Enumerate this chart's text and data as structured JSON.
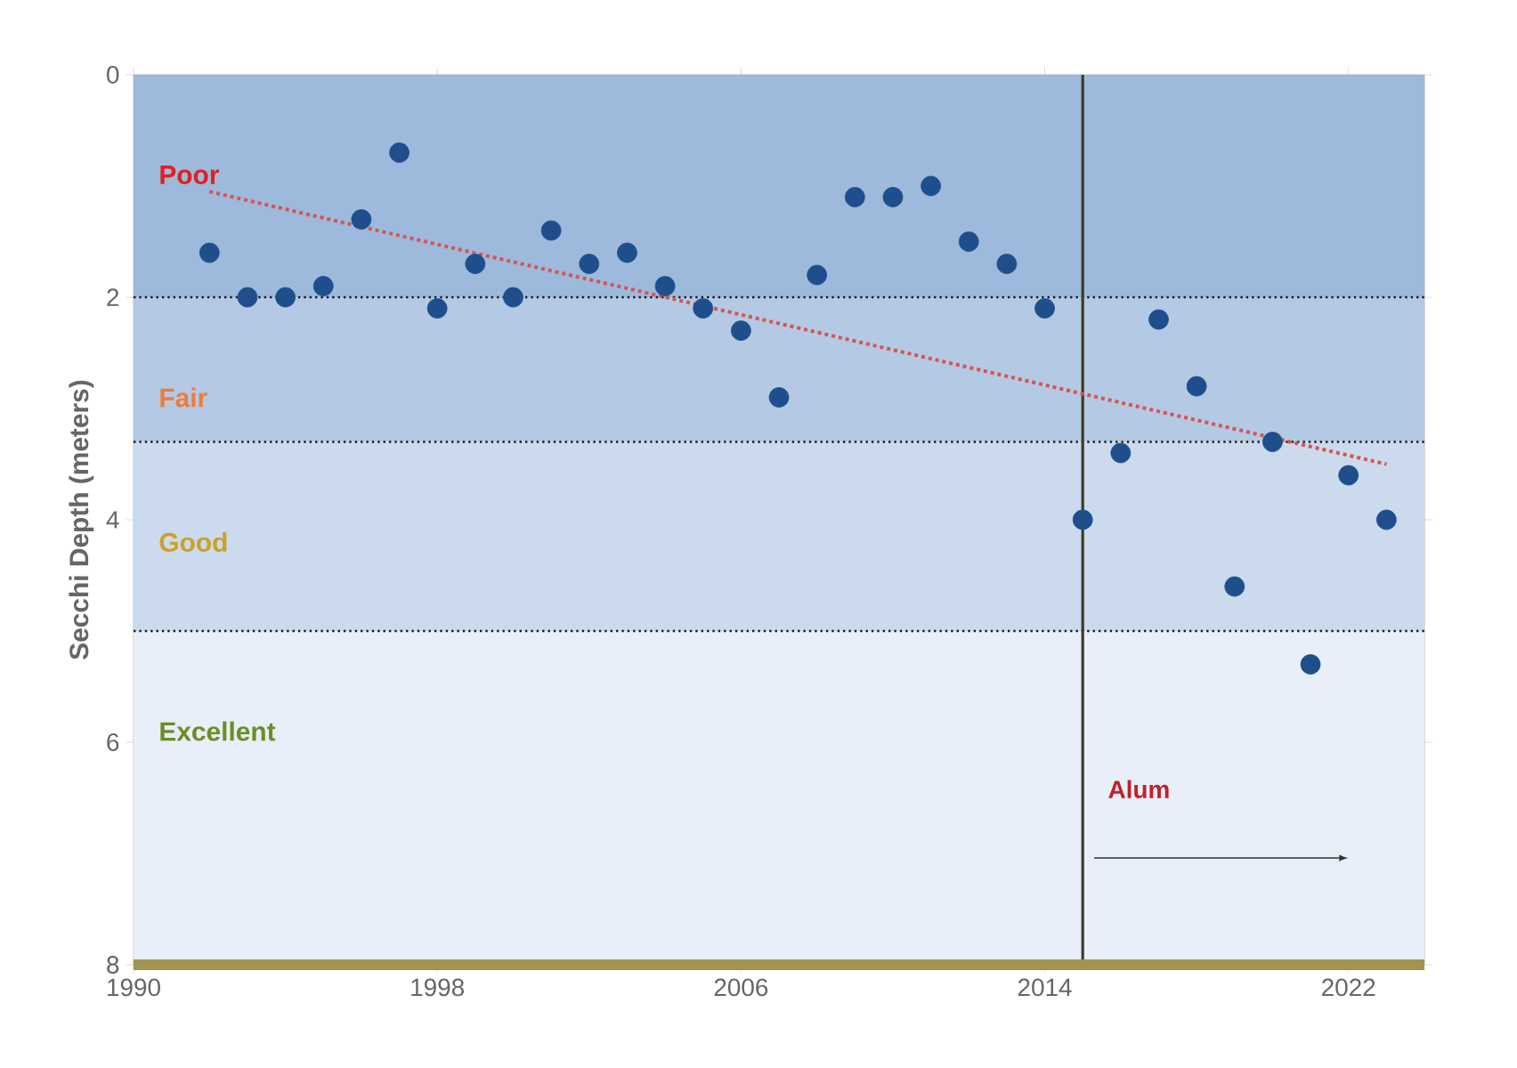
{
  "chart_data": {
    "type": "scatter",
    "ylabel": "Secchi Depth (meters)",
    "x": [
      1992,
      1993,
      1994,
      1995,
      1996,
      1997,
      1998,
      1999,
      2000,
      2001,
      2002,
      2003,
      2004,
      2005,
      2006,
      2007,
      2008,
      2009,
      2010,
      2011,
      2012,
      2013,
      2014,
      2015,
      2016,
      2017,
      2018,
      2019,
      2020,
      2021,
      2022,
      2023
    ],
    "series": [
      {
        "color": "#1f4e8c",
        "marker": "circle",
        "values": [
          1.6,
          2.0,
          2.0,
          1.9,
          1.3,
          0.7,
          2.1,
          1.7,
          2.0,
          1.4,
          1.7,
          1.6,
          1.9,
          2.1,
          2.3,
          2.9,
          1.8,
          1.1,
          1.1,
          1.0,
          1.5,
          1.7,
          2.1,
          4.0,
          3.4,
          2.2,
          2.8,
          4.6,
          3.3,
          5.3,
          3.6,
          4.0
        ]
      },
      {
        "type": "line",
        "color": "#d9534f",
        "line_style": "dotted",
        "marker": "none",
        "x": [
          1992,
          2023
        ],
        "values": [
          1.05,
          3.5
        ]
      }
    ],
    "xlim": [
      1990,
      2024
    ],
    "ylim": [
      8,
      0
    ],
    "xticks": [
      1990,
      1998,
      2006,
      2014,
      2022
    ],
    "yticks": [
      0,
      2,
      4,
      6,
      8
    ],
    "bands": [
      {
        "axis": "y",
        "from": 0,
        "to": 2,
        "label": "Poor",
        "color": "#9db9dc"
      },
      {
        "axis": "y",
        "from": 2,
        "to": 3.3,
        "label": "Fair",
        "color": "#b4c9e4"
      },
      {
        "axis": "y",
        "from": 3.3,
        "to": 5,
        "label": "Good",
        "color": "#cbdaed"
      },
      {
        "axis": "y",
        "from": 5,
        "to": 8,
        "label": "Excellent",
        "color": "#e8eff8"
      }
    ],
    "ref_lines": [
      {
        "axis": "y",
        "value": 2,
        "color": "#1a1a1a",
        "line_style": "dotted"
      },
      {
        "axis": "y",
        "value": 3.3,
        "color": "#1a1a1a",
        "line_style": "dotted"
      },
      {
        "axis": "y",
        "value": 5,
        "color": "#1a1a1a",
        "line_style": "dotted"
      },
      {
        "axis": "x",
        "value": 2015,
        "label": "Alum",
        "color": "#3d3a2a",
        "line_style": "solid"
      }
    ],
    "grid": false
  }
}
